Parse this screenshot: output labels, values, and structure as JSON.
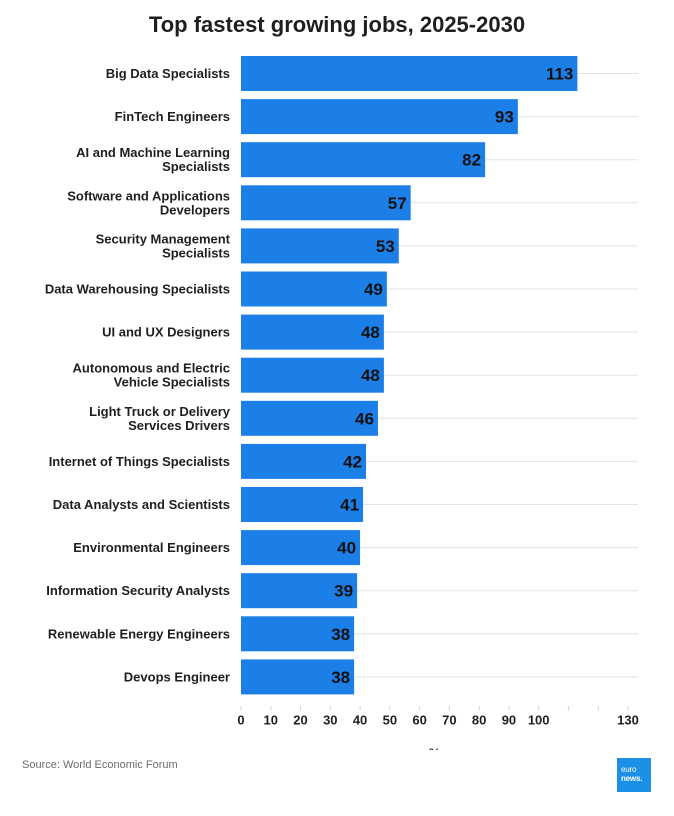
{
  "chart_data": {
    "type": "bar",
    "orientation": "horizontal",
    "title": "Top fastest growing jobs, 2025-2030",
    "xlabel": "%",
    "ylabel": "",
    "categories": [
      "Big Data Specialists",
      "FinTech Engineers",
      "AI and Machine Learning Specialists",
      "Software and Applications Developers",
      "Security Management Specialists",
      "Data Warehousing Specialists",
      "UI and UX Designers",
      "Autonomous and Electric Vehicle Specialists",
      "Light Truck or Delivery Services Drivers",
      "Internet of Things Specialists",
      "Data Analysts and Scientists",
      "Environmental Engineers",
      "Information Security Analysts",
      "Renewable Energy Engineers",
      "Devops Engineer"
    ],
    "category_lines": [
      [
        "Big Data Specialists"
      ],
      [
        "FinTech Engineers"
      ],
      [
        "AI and Machine Learning",
        "Specialists"
      ],
      [
        "Software and Applications",
        "Developers"
      ],
      [
        "Security Management",
        "Specialists"
      ],
      [
        "Data Warehousing Specialists"
      ],
      [
        "UI and UX Designers"
      ],
      [
        "Autonomous and Electric",
        "Vehicle Specialists"
      ],
      [
        "Light Truck or Delivery",
        "Services Drivers"
      ],
      [
        "Internet of Things Specialists"
      ],
      [
        "Data Analysts and Scientists"
      ],
      [
        "Environmental Engineers"
      ],
      [
        "Information Security Analysts"
      ],
      [
        "Renewable Energy Engineers"
      ],
      [
        "Devops Engineer"
      ]
    ],
    "values": [
      113,
      93,
      82,
      57,
      53,
      49,
      48,
      48,
      46,
      42,
      41,
      40,
      39,
      38,
      38
    ],
    "xlim": [
      0,
      130
    ],
    "xticks": [
      0,
      10,
      20,
      30,
      40,
      50,
      60,
      70,
      80,
      90,
      100,
      130
    ],
    "grid": true,
    "bar_color": "#1c7fe8",
    "label_color": "#111111"
  },
  "source": "Source: World Economic Forum",
  "logo": {
    "line1": "euro",
    "line2": "news."
  }
}
